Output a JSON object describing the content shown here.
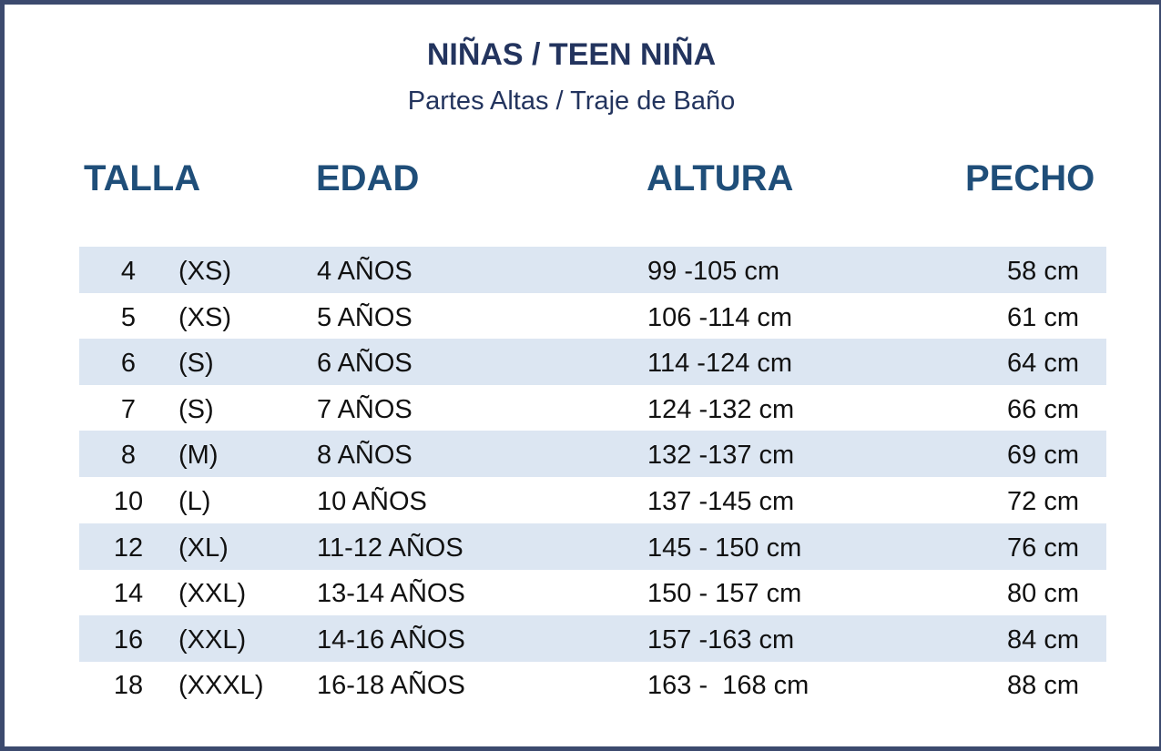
{
  "header": {
    "title": "NIÑAS / TEEN NIÑA",
    "subtitle": "Partes Altas / Traje de Baño"
  },
  "table": {
    "columns": [
      "TALLA",
      "EDAD",
      "ALTURA",
      "PECHO"
    ],
    "rows": [
      [
        "4",
        "(XS)",
        "4 AÑOS",
        "99 -105 cm",
        "58 cm"
      ],
      [
        "5",
        "(XS)",
        "5 AÑOS",
        "106 -114 cm",
        "61 cm"
      ],
      [
        "6",
        "(S)",
        "6 AÑOS",
        "114 -124 cm",
        "64 cm"
      ],
      [
        "7",
        "(S)",
        "7 AÑOS",
        "124 -132 cm",
        "66 cm"
      ],
      [
        "8",
        "(M)",
        "8 AÑOS",
        "132 -137 cm",
        "69 cm"
      ],
      [
        "10",
        "(L)",
        "10 AÑOS",
        "137 -145 cm",
        "72 cm"
      ],
      [
        "12",
        "(XL)",
        "11-12 AÑOS",
        "145 - 150 cm",
        "76 cm"
      ],
      [
        "14",
        "(XXL)",
        "13-14 AÑOS",
        "150 - 157 cm",
        "80 cm"
      ],
      [
        "16",
        "(XXL)",
        "14-16 AÑOS",
        "157 -163 cm",
        "84 cm"
      ],
      [
        "18",
        "(XXXL)",
        "16-18 AÑOS",
        "163 -  168 cm",
        "88 cm"
      ]
    ]
  }
}
